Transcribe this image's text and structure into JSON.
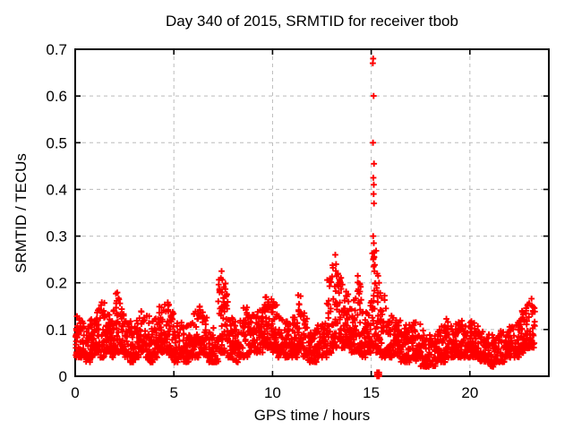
{
  "chart_data": {
    "type": "scatter",
    "title": "Day 340 of 2015, SRMTID for receiver tbob",
    "xlabel": "GPS time / hours",
    "ylabel": "SRMTID / TECUs",
    "xlim": [
      0,
      24
    ],
    "ylim": [
      0,
      0.7
    ],
    "xticks": [
      0,
      5,
      10,
      15,
      20
    ],
    "xtick_labels": [
      "0",
      "5",
      "10",
      "15",
      "20"
    ],
    "yticks": [
      0,
      0.1,
      0.2,
      0.3,
      0.4,
      0.5,
      0.6,
      0.7
    ],
    "ytick_labels": [
      "0",
      "0.1",
      "0.2",
      "0.3",
      "0.4",
      "0.5",
      "0.6",
      "0.7"
    ],
    "grid": {
      "visible": true,
      "style": "dashed",
      "at_major_ticks": true
    },
    "legend": "none",
    "marker": "plus",
    "colors": {
      "marker": "#ff0000",
      "grid": "#bbbbbb",
      "axis": "#000000",
      "background": "#ffffff"
    },
    "band_envelope_bins": [
      [
        0,
        0.25,
        0.04,
        0.13,
        30
      ],
      [
        0.25,
        0.5,
        0.04,
        0.12,
        30
      ],
      [
        0.5,
        0.75,
        0.03,
        0.11,
        28
      ],
      [
        0.75,
        1,
        0.04,
        0.13,
        30
      ],
      [
        1,
        1.25,
        0.05,
        0.15,
        30
      ],
      [
        1.25,
        1.5,
        0.04,
        0.16,
        30
      ],
      [
        1.5,
        1.75,
        0.05,
        0.14,
        30
      ],
      [
        1.75,
        2,
        0.04,
        0.15,
        30
      ],
      [
        2,
        2.25,
        0.05,
        0.18,
        32
      ],
      [
        2.25,
        2.5,
        0.05,
        0.16,
        30
      ],
      [
        2.5,
        2.75,
        0.04,
        0.13,
        28
      ],
      [
        2.75,
        3,
        0.03,
        0.12,
        28
      ],
      [
        3,
        3.25,
        0.04,
        0.12,
        28
      ],
      [
        3.25,
        3.5,
        0.05,
        0.14,
        30
      ],
      [
        3.5,
        3.75,
        0.04,
        0.13,
        28
      ],
      [
        3.75,
        4,
        0.03,
        0.12,
        28
      ],
      [
        4,
        4.25,
        0.04,
        0.13,
        28
      ],
      [
        4.25,
        4.5,
        0.05,
        0.15,
        30
      ],
      [
        4.5,
        4.75,
        0.05,
        0.16,
        30
      ],
      [
        4.75,
        5,
        0.04,
        0.14,
        28
      ],
      [
        5,
        5.25,
        0.03,
        0.12,
        28
      ],
      [
        5.25,
        5.5,
        0.04,
        0.13,
        28
      ],
      [
        5.5,
        5.75,
        0.03,
        0.11,
        26
      ],
      [
        5.75,
        6,
        0.04,
        0.12,
        26
      ],
      [
        6,
        6.25,
        0.04,
        0.14,
        30
      ],
      [
        6.25,
        6.5,
        0.05,
        0.15,
        30
      ],
      [
        6.5,
        6.75,
        0.04,
        0.13,
        28
      ],
      [
        6.75,
        7,
        0.03,
        0.1,
        26
      ],
      [
        7,
        7.25,
        0.03,
        0.11,
        26
      ],
      [
        7.25,
        7.5,
        0.05,
        0.21,
        32
      ],
      [
        7.5,
        7.75,
        0.05,
        0.22,
        32
      ],
      [
        7.75,
        8,
        0.04,
        0.14,
        28
      ],
      [
        8,
        8.25,
        0.03,
        0.12,
        28
      ],
      [
        8.25,
        8.5,
        0.04,
        0.12,
        28
      ],
      [
        8.5,
        8.75,
        0.04,
        0.15,
        30
      ],
      [
        8.75,
        9,
        0.05,
        0.14,
        30
      ],
      [
        9,
        9.25,
        0.05,
        0.14,
        30
      ],
      [
        9.25,
        9.5,
        0.05,
        0.15,
        30
      ],
      [
        9.5,
        9.75,
        0.06,
        0.17,
        34
      ],
      [
        9.75,
        10,
        0.06,
        0.17,
        34
      ],
      [
        10,
        10.25,
        0.05,
        0.16,
        32
      ],
      [
        10.25,
        10.5,
        0.04,
        0.13,
        28
      ],
      [
        10.5,
        10.75,
        0.04,
        0.12,
        28
      ],
      [
        10.75,
        11,
        0.04,
        0.12,
        28
      ],
      [
        11,
        11.25,
        0.04,
        0.13,
        28
      ],
      [
        11.25,
        11.5,
        0.05,
        0.18,
        30
      ],
      [
        11.5,
        11.75,
        0.04,
        0.14,
        28
      ],
      [
        11.75,
        12,
        0.03,
        0.1,
        26
      ],
      [
        12,
        12.25,
        0.03,
        0.1,
        26
      ],
      [
        12.25,
        12.5,
        0.04,
        0.11,
        26
      ],
      [
        12.5,
        12.75,
        0.04,
        0.12,
        28
      ],
      [
        12.75,
        13,
        0.05,
        0.21,
        30
      ],
      [
        13,
        13.25,
        0.06,
        0.24,
        34
      ],
      [
        13.25,
        13.5,
        0.07,
        0.22,
        34
      ],
      [
        13.5,
        13.75,
        0.06,
        0.2,
        34
      ],
      [
        13.75,
        14,
        0.06,
        0.18,
        32
      ],
      [
        14,
        14.25,
        0.05,
        0.17,
        32
      ],
      [
        14.25,
        14.5,
        0.05,
        0.21,
        32
      ],
      [
        14.5,
        14.75,
        0.04,
        0.14,
        28
      ],
      [
        14.75,
        15,
        0.05,
        0.16,
        30
      ],
      [
        15,
        15.25,
        0.06,
        0.27,
        36
      ],
      [
        15.25,
        15.5,
        0.05,
        0.22,
        34
      ],
      [
        15.5,
        15.75,
        0.04,
        0.18,
        30
      ],
      [
        15.75,
        16,
        0.04,
        0.15,
        28
      ],
      [
        16,
        16.25,
        0.04,
        0.13,
        28
      ],
      [
        16.25,
        16.5,
        0.04,
        0.12,
        28
      ],
      [
        16.5,
        16.75,
        0.03,
        0.13,
        28
      ],
      [
        16.75,
        17,
        0.03,
        0.12,
        28
      ],
      [
        17,
        17.25,
        0.04,
        0.12,
        28
      ],
      [
        17.25,
        17.5,
        0.03,
        0.12,
        28
      ],
      [
        17.5,
        17.75,
        0.02,
        0.1,
        26
      ],
      [
        17.75,
        18,
        0.02,
        0.09,
        24
      ],
      [
        18,
        18.25,
        0.02,
        0.09,
        24
      ],
      [
        18.25,
        18.5,
        0.03,
        0.1,
        26
      ],
      [
        18.5,
        18.75,
        0.03,
        0.11,
        26
      ],
      [
        18.75,
        19,
        0.04,
        0.13,
        28
      ],
      [
        19,
        19.25,
        0.04,
        0.11,
        28
      ],
      [
        19.25,
        19.5,
        0.04,
        0.12,
        28
      ],
      [
        19.5,
        19.75,
        0.04,
        0.12,
        28
      ],
      [
        19.75,
        20,
        0.04,
        0.11,
        28
      ],
      [
        20,
        20.25,
        0.04,
        0.12,
        28
      ],
      [
        20.25,
        20.5,
        0.04,
        0.11,
        28
      ],
      [
        20.5,
        20.75,
        0.03,
        0.1,
        26
      ],
      [
        20.75,
        21,
        0.03,
        0.09,
        26
      ],
      [
        21,
        21.25,
        0.02,
        0.09,
        24
      ],
      [
        21.25,
        21.5,
        0.03,
        0.09,
        26
      ],
      [
        21.5,
        21.75,
        0.03,
        0.1,
        26
      ],
      [
        21.75,
        22,
        0.04,
        0.1,
        26
      ],
      [
        22,
        22.25,
        0.04,
        0.11,
        28
      ],
      [
        22.25,
        22.5,
        0.04,
        0.12,
        28
      ],
      [
        22.5,
        22.75,
        0.05,
        0.14,
        30
      ],
      [
        22.75,
        23,
        0.06,
        0.16,
        32
      ],
      [
        23,
        23.3,
        0.06,
        0.17,
        34
      ]
    ],
    "outlier_points": [
      [
        7.38,
        0.21
      ],
      [
        7.42,
        0.225
      ],
      [
        12.9,
        0.205
      ],
      [
        13.18,
        0.26
      ],
      [
        13.22,
        0.24
      ],
      [
        14.32,
        0.215
      ],
      [
        15.08,
        0.67
      ],
      [
        15.1,
        0.68
      ],
      [
        15.12,
        0.6
      ],
      [
        15.09,
        0.5
      ],
      [
        15.14,
        0.455
      ],
      [
        15.11,
        0.425
      ],
      [
        15.13,
        0.41
      ],
      [
        15.12,
        0.39
      ],
      [
        15.14,
        0.37
      ],
      [
        15.1,
        0.3
      ],
      [
        15.13,
        0.285
      ],
      [
        15.15,
        0.265
      ],
      [
        15.1,
        0.25
      ],
      [
        15.12,
        0.235
      ],
      [
        15.16,
        0.225
      ],
      [
        15.35,
        0.215
      ],
      [
        15.4,
        0.2
      ]
    ],
    "zero_cluster_points": [
      [
        15.3,
        0
      ],
      [
        15.35,
        0
      ],
      [
        15.4,
        0
      ],
      [
        15.3,
        0.004
      ],
      [
        15.35,
        0.004
      ],
      [
        15.4,
        0.004
      ],
      [
        15.3,
        0.008
      ],
      [
        15.35,
        0.008
      ],
      [
        15.4,
        0.008
      ]
    ]
  }
}
